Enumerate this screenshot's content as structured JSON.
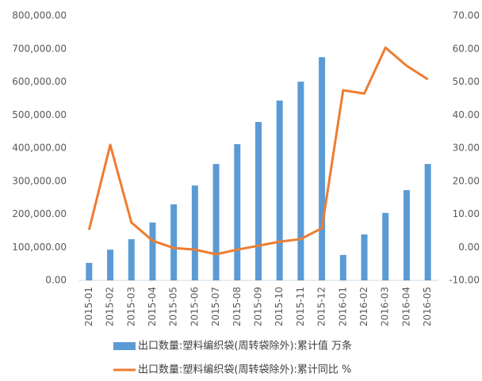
{
  "chart_data": {
    "type": "bar-line",
    "categories": [
      "2015-01",
      "2015-02",
      "2015-03",
      "2015-04",
      "2015-05",
      "2015-06",
      "2015-07",
      "2015-08",
      "2015-09",
      "2015-10",
      "2015-11",
      "2015-12",
      "2016-01",
      "2016-02",
      "2016-03",
      "2016-04",
      "2016-05"
    ],
    "series": [
      {
        "name": "出口数量:塑料编织袋(周转袋除外):累计值 万条",
        "type": "bar",
        "color": "#5b9bd5",
        "values": [
          53000,
          93000,
          124500,
          175000,
          230000,
          287000,
          352000,
          412000,
          479000,
          544000,
          601000,
          675000,
          77000,
          139000,
          204000,
          273000,
          352000
        ]
      },
      {
        "name": "出口数量:塑料编织袋(周转袋除外):累计同比 %",
        "type": "line",
        "axis": "y2",
        "color": "#ed7d31",
        "values": [
          5.3,
          31,
          7.5,
          2,
          -0.2,
          -0.7,
          -2.1,
          -0.7,
          0.5,
          1.7,
          2.5,
          5.8,
          47.5,
          46.5,
          60.4,
          54.9,
          50.8
        ]
      }
    ],
    "ylim": [
      0,
      800000
    ],
    "yticks": [
      {
        "value": 0,
        "label": "0.00"
      },
      {
        "value": 100000,
        "label": "100,000.00"
      },
      {
        "value": 200000,
        "label": "200,000.00"
      },
      {
        "value": 300000,
        "label": "300,000.00"
      },
      {
        "value": 400000,
        "label": "400,000.00"
      },
      {
        "value": 500000,
        "label": "500,000.00"
      },
      {
        "value": 600000,
        "label": "600,000.00"
      },
      {
        "value": 700000,
        "label": "700,000.00"
      },
      {
        "value": 800000,
        "label": "800,000.00"
      }
    ],
    "y2lim": [
      -10,
      70
    ],
    "y2ticks": [
      {
        "value": -10,
        "label": "-10.00"
      },
      {
        "value": 0,
        "label": "0.00"
      },
      {
        "value": 10,
        "label": "10.00"
      },
      {
        "value": 20,
        "label": "20.00"
      },
      {
        "value": 30,
        "label": "30.00"
      },
      {
        "value": 40,
        "label": "40.00"
      },
      {
        "value": 50,
        "label": "50.00"
      },
      {
        "value": 60,
        "label": "60.00"
      },
      {
        "value": 70,
        "label": "70.00"
      }
    ],
    "legend": "bottom"
  }
}
